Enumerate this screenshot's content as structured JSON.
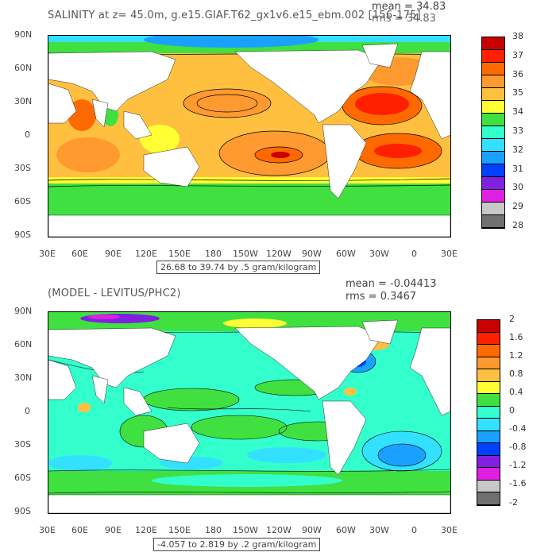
{
  "top": {
    "title": "SALINITY at z=  45.0m, g.e15.GIAF.T62_gx1v6.e15_ebm.002 [156-175]",
    "mean": "mean = 34.83",
    "rms": "rms = 34.83",
    "range": "26.68 to 39.74 by .5 gram/kilogram",
    "colorbar_labels": [
      "38",
      "37",
      "36",
      "35",
      "34",
      "33",
      "32",
      "31",
      "30",
      "29",
      "28"
    ],
    "colorbar_colors": [
      "#c80000",
      "#ff2000",
      "#ff6a00",
      "#ff9a30",
      "#ffc040",
      "#ffff33",
      "#40e040",
      "#33ffcc",
      "#33e0ff",
      "#1aa0ff",
      "#0040ff",
      "#8020e0",
      "#e020e0",
      "#c8c8c8",
      "#707070"
    ]
  },
  "bottom": {
    "title": "(MODEL - LEVITUS/PHC2)",
    "mean": "mean = -0.04413",
    "rms": "rms = 0.3467",
    "range": "-4.057 to 2.819 by .2 gram/kilogram",
    "colorbar_labels": [
      "2",
      "1.6",
      "1.2",
      "0.8",
      "0.4",
      "0",
      "-0.4",
      "-0.8",
      "-1.2",
      "-1.6",
      "-2"
    ],
    "colorbar_colors": [
      "#c80000",
      "#ff2000",
      "#ff6a00",
      "#ff9a30",
      "#ffc040",
      "#ffff33",
      "#40e040",
      "#33ffcc",
      "#33e0ff",
      "#1aa0ff",
      "#0040ff",
      "#8020e0",
      "#e020e0",
      "#c8c8c8",
      "#707070"
    ]
  },
  "axes": {
    "lat_ticks": [
      "90N",
      "60N",
      "30N",
      "0",
      "30S",
      "60S",
      "90S"
    ],
    "lon_ticks": [
      "30E",
      "60E",
      "90E",
      "120E",
      "150E",
      "180",
      "150W",
      "120W",
      "90W",
      "60W",
      "30W",
      "0",
      "30E"
    ]
  }
}
